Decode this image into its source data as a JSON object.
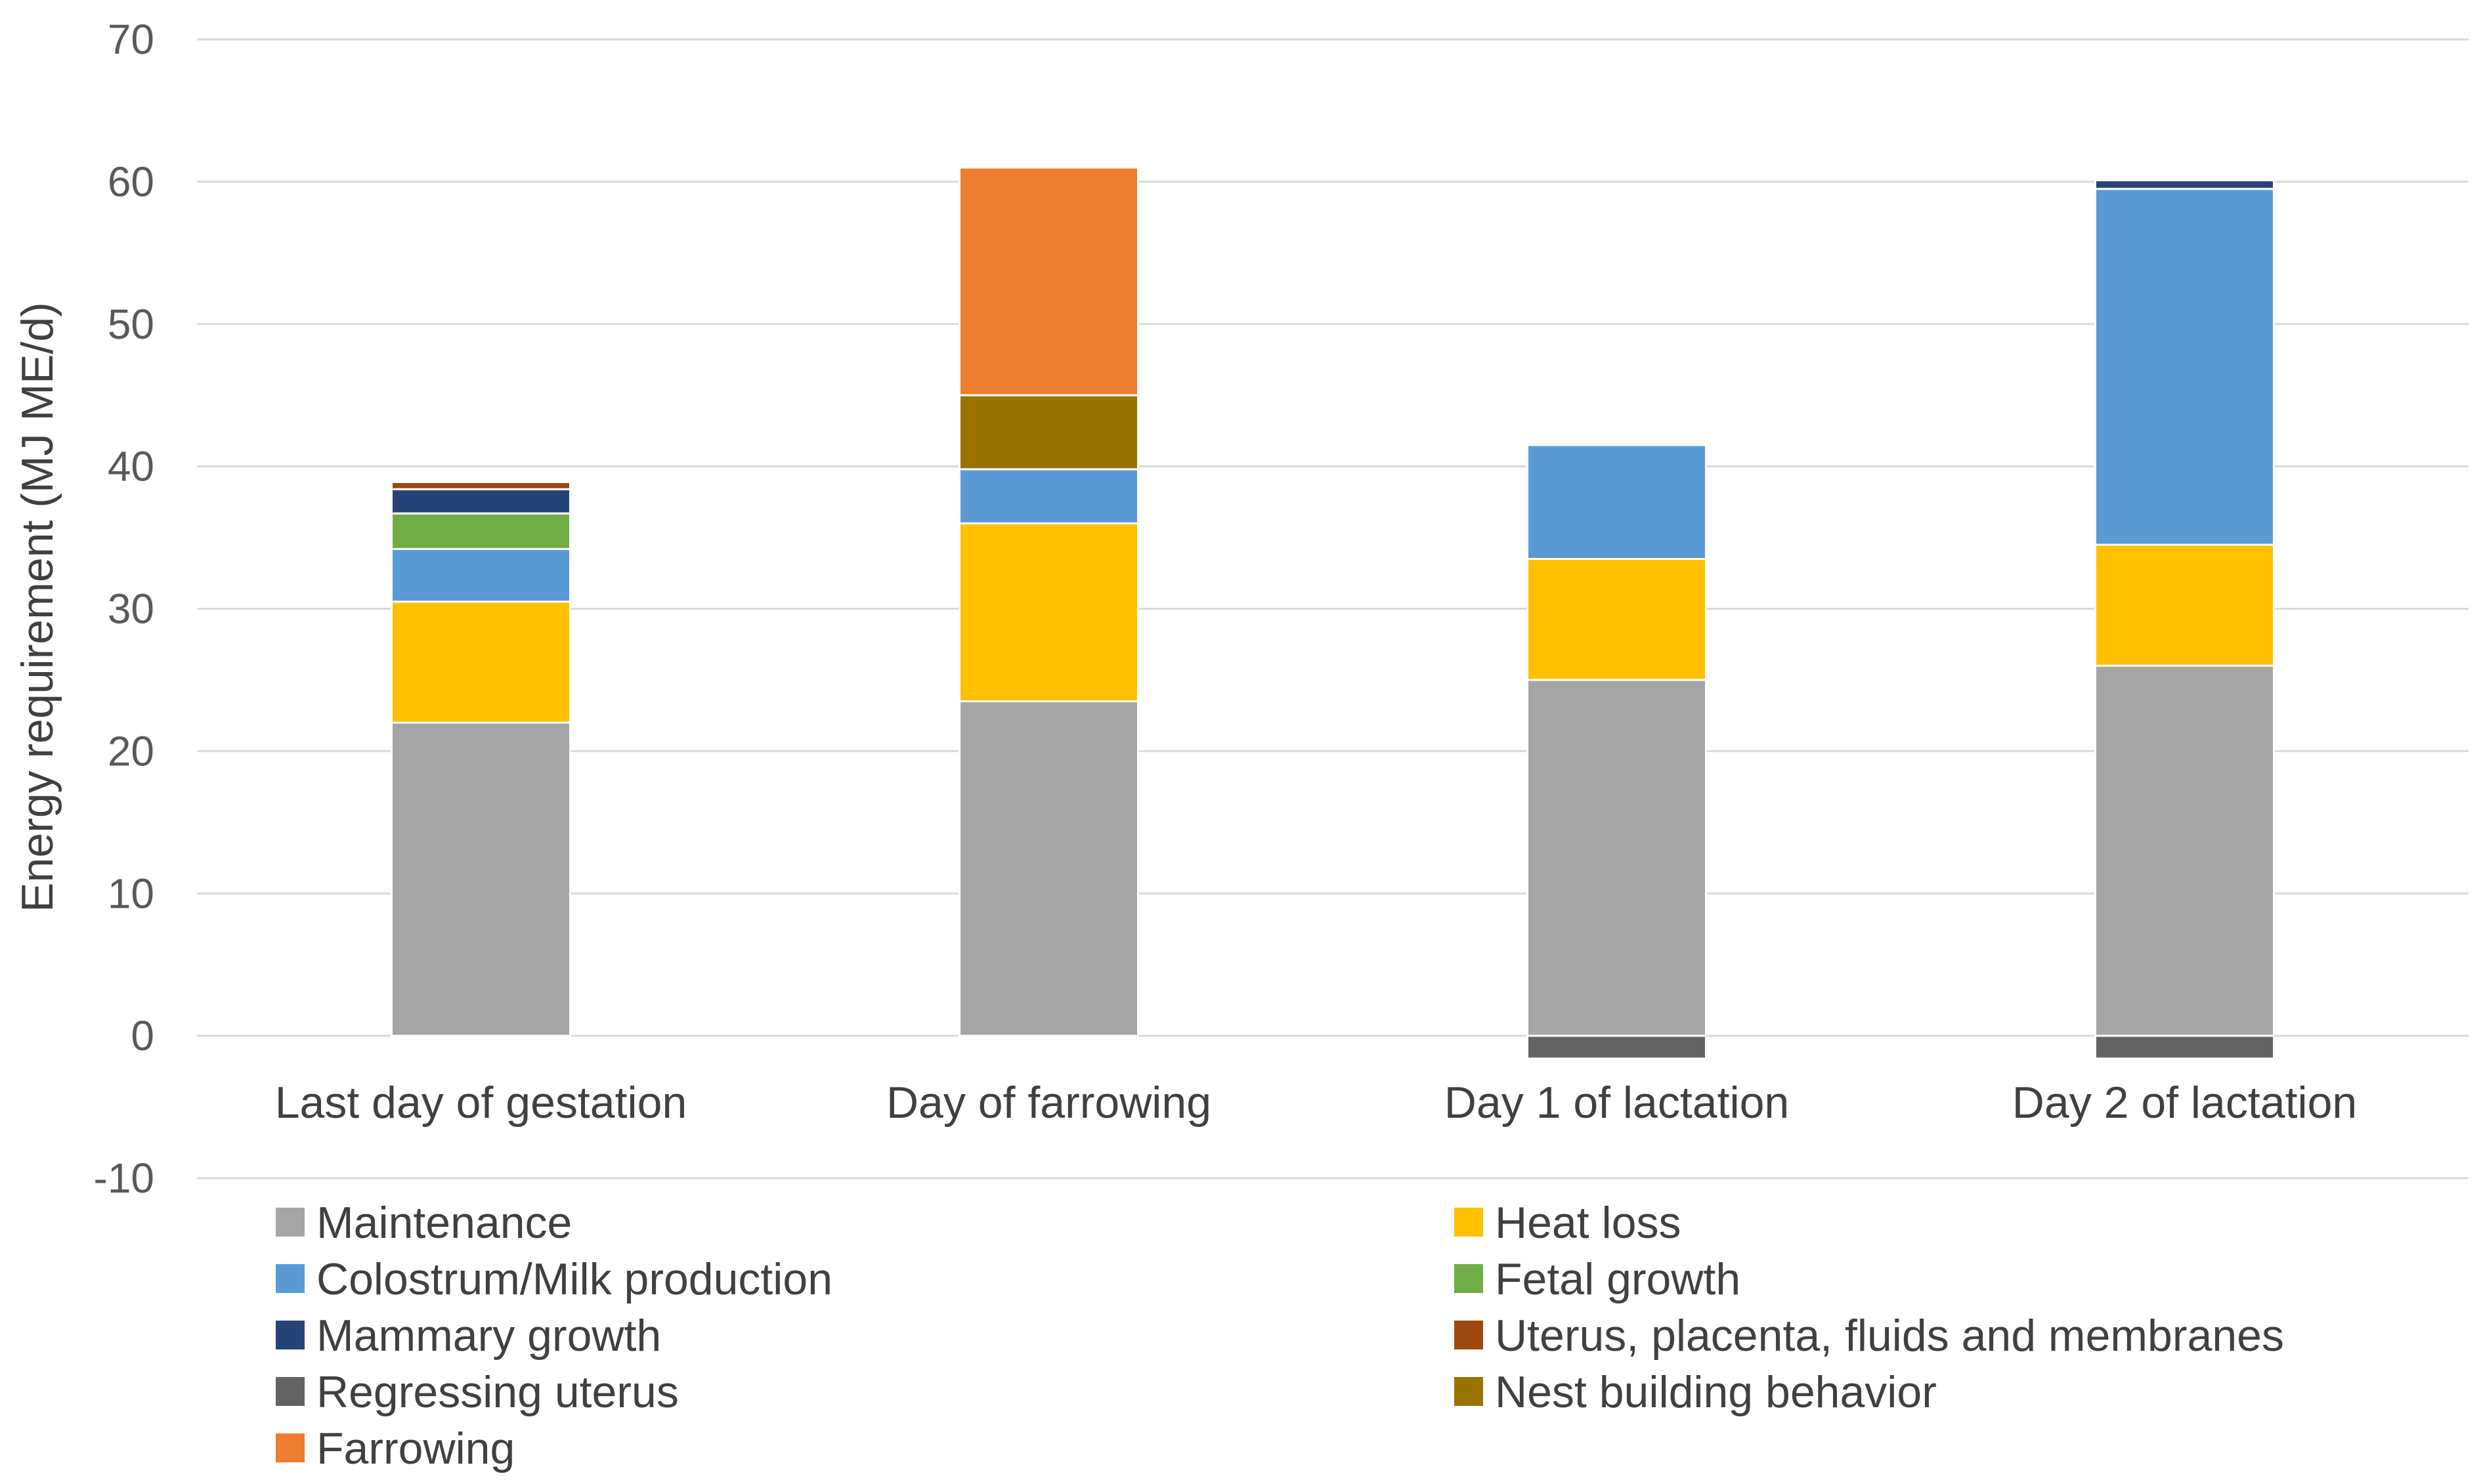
{
  "chart_data": {
    "type": "bar",
    "stacked": true,
    "title": "",
    "xlabel": "",
    "ylabel": "Energy requirement (MJ ME/d)",
    "ylim": [
      -10,
      70
    ],
    "yticks": [
      -10,
      0,
      10,
      20,
      30,
      40,
      50,
      60,
      70
    ],
    "grid": true,
    "legend_position": "bottom",
    "categories": [
      "Last day of gestation",
      "Day of farrowing",
      "Day 1 of lactation",
      "Day 2 of lactation"
    ],
    "series": [
      {
        "name": "Maintenance",
        "color": "#a5a5a5",
        "values": [
          22,
          23.5,
          25,
          26
        ]
      },
      {
        "name": "Heat loss",
        "color": "#ffc000",
        "values": [
          8.5,
          12.5,
          8.5,
          8.5
        ]
      },
      {
        "name": "Colostrum/Milk production",
        "color": "#5b9bd5",
        "values": [
          3.7,
          3.8,
          8,
          25
        ]
      },
      {
        "name": "Fetal growth",
        "color": "#70ad47",
        "values": [
          2.5,
          0,
          0,
          0
        ]
      },
      {
        "name": "Mammary growth",
        "color": "#264478",
        "values": [
          1.7,
          0,
          0,
          0.6
        ]
      },
      {
        "name": "Uterus, placenta, fluids and membranes",
        "color": "#9e480e",
        "values": [
          0.5,
          0,
          0,
          0
        ]
      },
      {
        "name": "Regressing uterus",
        "color": "#636363",
        "values": [
          0,
          0,
          -1.6,
          -1.6
        ]
      },
      {
        "name": "Nest building behavior",
        "color": "#997300",
        "values": [
          0,
          5.2,
          0,
          0
        ]
      },
      {
        "name": "Farrowing",
        "color": "#ed7d31",
        "values": [
          0,
          16,
          0,
          0
        ]
      }
    ],
    "legend_order": [
      "Maintenance",
      "Heat loss",
      "Colostrum/Milk production",
      "Fetal growth",
      "Mammary growth",
      "Uterus, placenta, fluids and membranes",
      "Regressing uterus",
      "Nest building behavior",
      "Farrowing"
    ]
  }
}
